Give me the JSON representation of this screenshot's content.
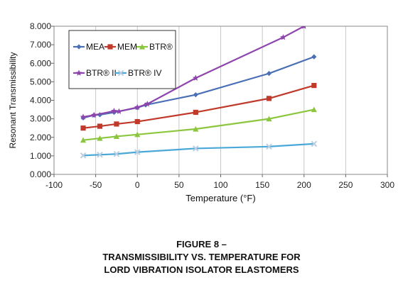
{
  "chart_data": {
    "type": "line",
    "xlabel": "Temperature (°F)",
    "ylabel": "Resonant Transmissibility",
    "xlim": [
      -100,
      300
    ],
    "ylim": [
      0,
      8
    ],
    "xticks": [
      -100,
      -50,
      0,
      50,
      100,
      150,
      200,
      250,
      300
    ],
    "yticks": [
      0,
      1,
      2,
      3,
      4,
      5,
      6,
      7,
      8
    ],
    "ytick_labels": [
      "0.000",
      "1.000",
      "2.000",
      "3.000",
      "4.000",
      "5.000",
      "6.000",
      "7.000",
      "8.000"
    ],
    "grid": "vertical",
    "legend_position": "top-left",
    "series": [
      {
        "name": "MEA",
        "color": "#4a6fb5",
        "marker": "diamond",
        "x": [
          -65,
          -52,
          -45,
          -28,
          0,
          10,
          70,
          158,
          212
        ],
        "y": [
          3.05,
          3.2,
          3.22,
          3.35,
          3.6,
          3.75,
          4.3,
          5.45,
          6.35
        ]
      },
      {
        "name": "MEM",
        "color": "#c0392b",
        "marker": "square",
        "x": [
          -65,
          -45,
          -25,
          0,
          70,
          158,
          212
        ],
        "y": [
          2.5,
          2.6,
          2.72,
          2.85,
          3.35,
          4.1,
          4.8
        ]
      },
      {
        "name": "BTR®",
        "color": "#8cc63f",
        "marker": "triangle",
        "x": [
          -65,
          -45,
          -25,
          0,
          70,
          158,
          212
        ],
        "y": [
          1.85,
          1.95,
          2.05,
          2.15,
          2.45,
          3.0,
          3.5
        ]
      },
      {
        "name": "BTR® II",
        "color": "#8e44ad",
        "marker": "star",
        "x": [
          -65,
          -52,
          -28,
          -22,
          0,
          12,
          70,
          175,
          200
        ],
        "y": [
          3.1,
          3.2,
          3.42,
          3.4,
          3.62,
          3.8,
          5.2,
          7.4,
          8.0
        ]
      },
      {
        "name": "BTR® IV",
        "color": "#4aa8d8",
        "marker": "x",
        "x": [
          -65,
          -45,
          -25,
          0,
          70,
          158,
          212
        ],
        "y": [
          1.02,
          1.06,
          1.1,
          1.2,
          1.4,
          1.5,
          1.65
        ]
      }
    ]
  },
  "caption": {
    "line1": "FIGURE 8 –",
    "line2": "TRANSMISSIBILITY VS. TEMPERATURE FOR",
    "line3": "LORD VIBRATION ISOLATOR ELASTOMERS"
  }
}
